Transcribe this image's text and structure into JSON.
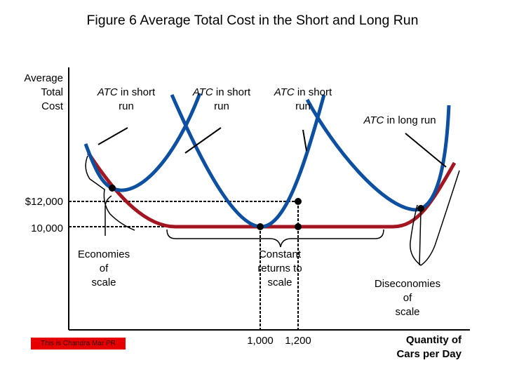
{
  "title": "Figure 6 Average Total Cost in the Short and Long Run",
  "watermark": "This is Chandra Mar PR",
  "chart_data": {
    "type": "line",
    "ylabel": "Average\nTotal\nCost",
    "xlabel": "Quantity of\nCars per Day",
    "y_tick_labels": [
      "$12,000",
      "10,000"
    ],
    "y_ticks": [
      12000,
      10000
    ],
    "x_tick_labels": [
      "1,000",
      "1,200"
    ],
    "x_ticks": [
      1000,
      1200
    ],
    "grid": false,
    "series": [
      {
        "name": "ATC in long run",
        "color": "#a31621"
      },
      {
        "name": "ATC in short run",
        "color": "#0d4fa0"
      },
      {
        "name": "ATC in short run",
        "color": "#0d4fa0"
      },
      {
        "name": "ATC in short run",
        "color": "#0d4fa0"
      }
    ],
    "annotations": {
      "srac_labels": [
        {
          "italic": "ATC",
          "rest": " in short\nrun"
        },
        {
          "italic": "ATC",
          "rest": " in short\nrun"
        },
        {
          "italic": "ATC",
          "rest": " in short\nrun"
        }
      ],
      "lrac_label": {
        "italic": "ATC",
        "rest": " in long run"
      },
      "regions": [
        "Economies\nof\nscale",
        "Constant\nreturns to\nscale",
        "Diseconomies\nof\nscale"
      ]
    }
  }
}
